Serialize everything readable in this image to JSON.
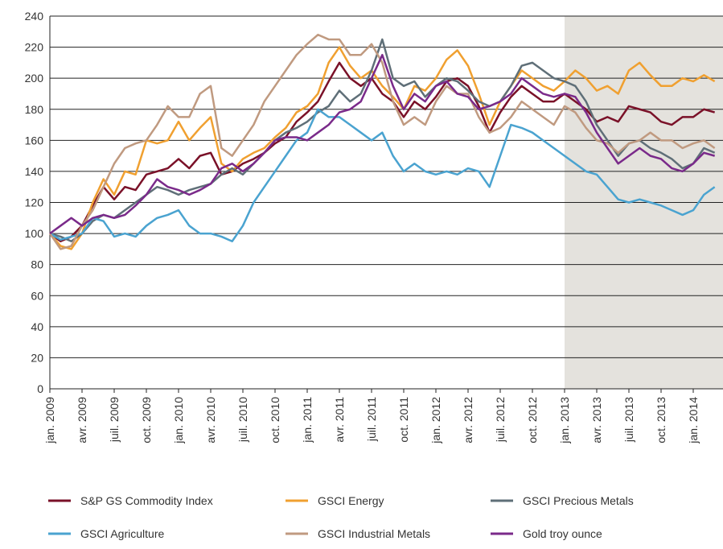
{
  "chart_data": {
    "type": "line",
    "categories": [
      "jan. 2009",
      null,
      null,
      "avr. 2009",
      null,
      null,
      "juil. 2009",
      null,
      null,
      "oct. 2009",
      null,
      null,
      "jan. 2010",
      null,
      null,
      "avr. 2010",
      null,
      null,
      "juil. 2010",
      null,
      null,
      "oct. 2010",
      null,
      null,
      "jan. 2011",
      null,
      null,
      "avr. 2011",
      null,
      null,
      "juil. 2011",
      null,
      null,
      "oct. 2011",
      null,
      null,
      "jan. 2012",
      null,
      null,
      "avr. 2012",
      null,
      null,
      "juil. 2012",
      null,
      null,
      "oct. 2012",
      null,
      null,
      "jan. 2013",
      null,
      null,
      "avr. 2013",
      null,
      null,
      "juil. 2013",
      null,
      null,
      "oct. 2013",
      null,
      null,
      "jan. 2014",
      null,
      null
    ],
    "ylim": [
      0,
      240
    ],
    "yticks": [
      0,
      20,
      40,
      60,
      80,
      100,
      120,
      140,
      160,
      180,
      200,
      220,
      240
    ],
    "grid": true,
    "shaded_from_index": 48,
    "legend": "bottom",
    "series": [
      {
        "name": "S&P GS Commodity Index",
        "color": "#7a1128",
        "values": [
          100,
          95,
          98,
          105,
          118,
          130,
          122,
          130,
          128,
          138,
          140,
          142,
          148,
          142,
          150,
          152,
          138,
          140,
          145,
          148,
          152,
          158,
          162,
          172,
          178,
          185,
          198,
          210,
          200,
          195,
          200,
          190,
          185,
          175,
          185,
          180,
          188,
          198,
          200,
          195,
          182,
          165,
          178,
          188,
          195,
          190,
          185,
          185,
          190,
          185,
          180,
          172,
          175,
          172,
          182,
          180,
          178,
          172,
          170,
          175,
          175,
          180,
          178
        ]
      },
      {
        "name": "GSCI Energy",
        "color": "#f0a030",
        "values": [
          100,
          92,
          90,
          100,
          120,
          135,
          125,
          140,
          138,
          160,
          158,
          160,
          172,
          160,
          168,
          175,
          145,
          140,
          148,
          152,
          155,
          162,
          168,
          178,
          182,
          190,
          210,
          220,
          208,
          200,
          205,
          195,
          188,
          180,
          195,
          192,
          200,
          212,
          218,
          208,
          190,
          170,
          185,
          195,
          205,
          200,
          195,
          192,
          198,
          205,
          200,
          192,
          195,
          190,
          205,
          210,
          202,
          195,
          195,
          200,
          198,
          202,
          198
        ]
      },
      {
        "name": "GSCI Precious Metals",
        "color": "#5f6f78",
        "values": [
          100,
          98,
          95,
          100,
          108,
          112,
          110,
          115,
          120,
          125,
          130,
          128,
          125,
          128,
          130,
          132,
          138,
          142,
          138,
          145,
          152,
          160,
          165,
          168,
          172,
          178,
          182,
          192,
          185,
          190,
          205,
          225,
          200,
          195,
          198,
          188,
          195,
          200,
          198,
          192,
          185,
          182,
          185,
          195,
          208,
          210,
          205,
          200,
          198,
          195,
          185,
          170,
          160,
          150,
          158,
          160,
          155,
          152,
          148,
          142,
          145,
          155,
          152
        ]
      },
      {
        "name": "GSCI Agriculture",
        "color": "#4aa3d0",
        "values": [
          100,
          96,
          98,
          100,
          110,
          108,
          98,
          100,
          98,
          105,
          110,
          112,
          115,
          105,
          100,
          100,
          98,
          95,
          105,
          120,
          130,
          140,
          150,
          160,
          165,
          180,
          175,
          175,
          170,
          165,
          160,
          165,
          150,
          140,
          145,
          140,
          138,
          140,
          138,
          142,
          140,
          130,
          150,
          170,
          168,
          165,
          160,
          155,
          150,
          145,
          140,
          138,
          130,
          122,
          120,
          122,
          120,
          118,
          115,
          112,
          115,
          125,
          130
        ]
      },
      {
        "name": "GSCI Industrial Metals",
        "color": "#c09a80",
        "values": [
          100,
          90,
          92,
          105,
          115,
          130,
          145,
          155,
          158,
          160,
          170,
          182,
          175,
          175,
          190,
          195,
          155,
          150,
          160,
          170,
          185,
          195,
          205,
          215,
          222,
          228,
          225,
          225,
          215,
          215,
          222,
          210,
          185,
          170,
          175,
          170,
          185,
          195,
          190,
          190,
          175,
          165,
          168,
          175,
          185,
          180,
          175,
          170,
          182,
          178,
          168,
          160,
          158,
          152,
          158,
          160,
          165,
          160,
          160,
          155,
          158,
          160,
          155
        ]
      },
      {
        "name": "Gold troy ounce",
        "color": "#7a2a8a",
        "values": [
          100,
          105,
          110,
          105,
          110,
          112,
          110,
          112,
          118,
          125,
          135,
          130,
          128,
          125,
          128,
          132,
          142,
          145,
          140,
          145,
          152,
          160,
          162,
          162,
          160,
          165,
          170,
          178,
          180,
          185,
          200,
          215,
          195,
          180,
          190,
          185,
          195,
          198,
          190,
          188,
          180,
          182,
          185,
          190,
          200,
          195,
          190,
          188,
          190,
          188,
          178,
          165,
          155,
          145,
          150,
          155,
          150,
          148,
          142,
          140,
          145,
          152,
          150
        ]
      }
    ]
  }
}
